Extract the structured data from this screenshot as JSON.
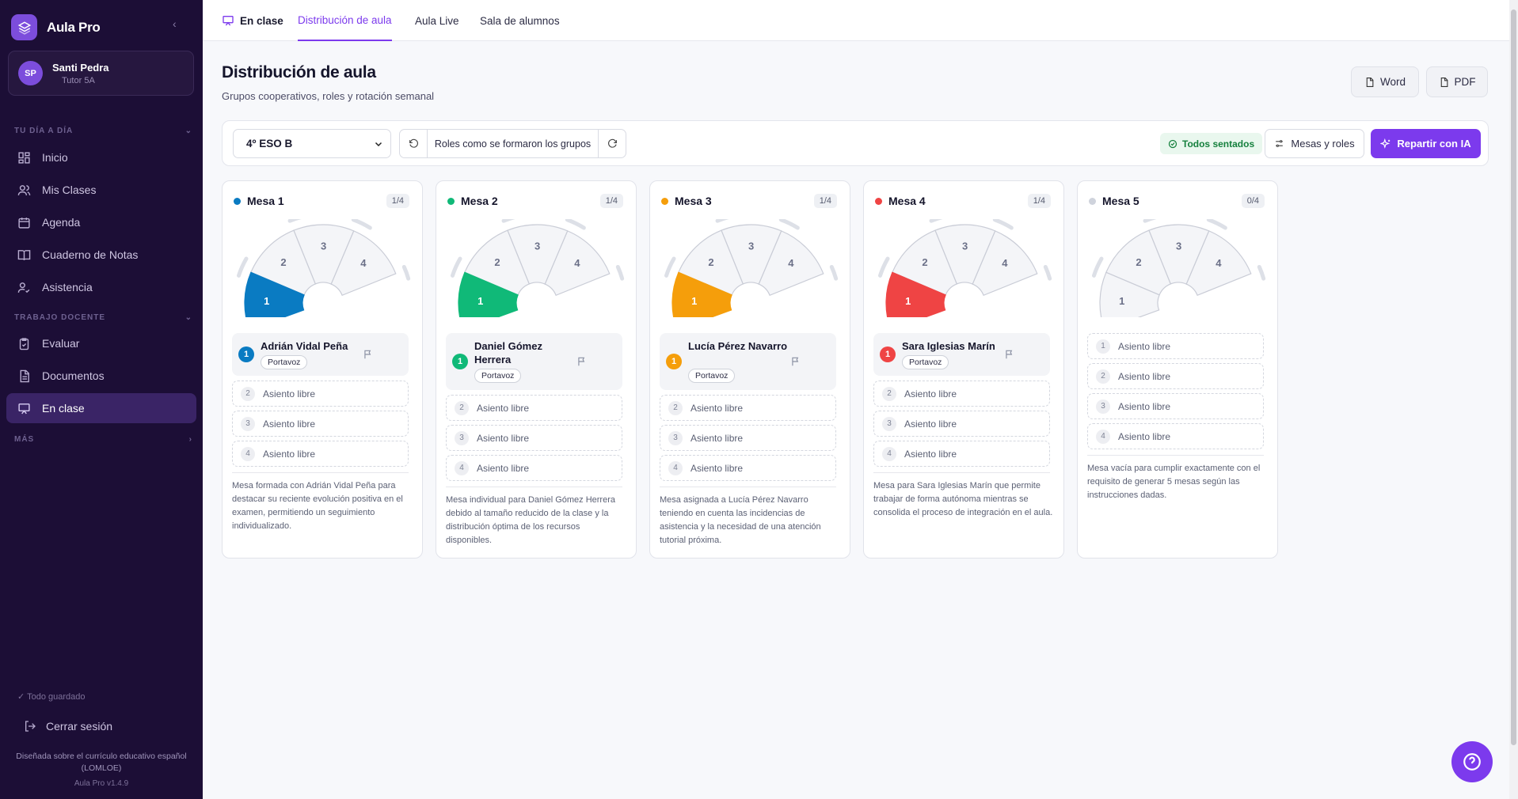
{
  "app": {
    "name": "Aula Pro",
    "collapse_icon": "chevron-left-icon"
  },
  "user": {
    "initials": "SP",
    "name": "Santi Pedra",
    "role": "Tutor 5A"
  },
  "sidebar": {
    "section1": "TU DÍA A DÍA",
    "section2": "TRABAJO DOCENTE",
    "section3": "MÁS",
    "items": [
      {
        "label": "Inicio",
        "icon": "grid-icon"
      },
      {
        "label": "Mis Clases",
        "icon": "users-icon"
      },
      {
        "label": "Agenda",
        "icon": "calendar-icon"
      },
      {
        "label": "Cuaderno de Notas",
        "icon": "book-icon"
      },
      {
        "label": "Asistencia",
        "icon": "user-check-icon"
      },
      {
        "label": "Evaluar",
        "icon": "clipboard-icon"
      },
      {
        "label": "Documentos",
        "icon": "document-icon"
      },
      {
        "label": "En clase",
        "icon": "monitor-icon",
        "active": true
      }
    ],
    "saved": "Todo guardado",
    "logout": "Cerrar sesión",
    "footer": "Diseñada sobre el currículo educativo español (LOMLOE)",
    "version": "Aula Pro v1.4.9"
  },
  "tabs": [
    "En clase",
    "Distribución de aula",
    "Aula Live",
    "Sala de alumnos"
  ],
  "page": {
    "title": "Distribución de aula",
    "subtitle": "Grupos cooperativos, roles y rotación semanal"
  },
  "export": {
    "word": "Word",
    "pdf": "PDF"
  },
  "toolbar": {
    "class_select": "4º ESO B",
    "roles_label": "Roles como se formaron los grupos",
    "status": "Todos sentados",
    "mesas_button": "Mesas y roles",
    "ai_button": "Repartir con IA"
  },
  "colors": {
    "accent": "#7c3aed",
    "sidebar": "#1c0e36",
    "mesa1": "#0a7bc2",
    "mesa2": "#10b978",
    "mesa3": "#f59e0b",
    "mesa4": "#ef4444",
    "mesa5": "#cfd3dc"
  },
  "free_label": "Asiento libre",
  "seat_numbers": [
    "1",
    "2",
    "3",
    "4"
  ],
  "mesas": [
    {
      "name": "Mesa 1",
      "count": "1/4",
      "color": "#0a7bc2",
      "light": "#9fc9e4",
      "student": "Adrián Vidal Peña",
      "role": "Portavoz",
      "desc": "Mesa formada con Adrián Vidal Peña para destacar su reciente evolución positiva en el examen, permitiendo un seguimiento individualizado."
    },
    {
      "name": "Mesa 2",
      "count": "1/4",
      "color": "#10b978",
      "light": "#9ee2c6",
      "student": "Daniel Gómez Herrera",
      "role": "Portavoz",
      "desc": "Mesa individual para Daniel Gómez Herrera debido al tamaño reducido de la clase y la distribución óptima de los recursos disponibles."
    },
    {
      "name": "Mesa 3",
      "count": "1/4",
      "color": "#f59e0b",
      "light": "#f8d492",
      "student": "Lucía Pérez Navarro",
      "role": "Portavoz",
      "desc": "Mesa asignada a Lucía Pérez Navarro teniendo en cuenta las incidencias de asistencia y la necesidad de una atención tutorial próxima."
    },
    {
      "name": "Mesa 4",
      "count": "1/4",
      "color": "#ef4444",
      "light": "#f6a8a8",
      "student": "Sara Iglesias Marín",
      "role": "Portavoz",
      "desc": "Mesa para Sara Iglesias Marín que permite trabajar de forma autónoma mientras se consolida el proceso de integración en el aula."
    },
    {
      "name": "Mesa 5",
      "count": "0/4",
      "color": "#cfd3dc",
      "light": "#dde0e7",
      "student": "",
      "role": "",
      "desc": "Mesa vacía para cumplir exactamente con el requisito de generar 5 mesas según las instrucciones dadas."
    }
  ]
}
